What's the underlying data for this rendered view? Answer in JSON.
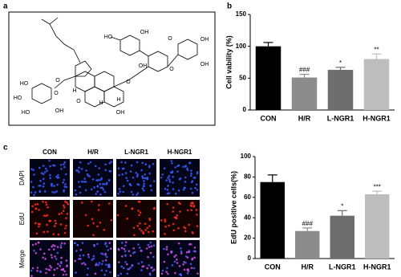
{
  "panels": {
    "a": {
      "label": "a",
      "atoms": [
        "HO",
        "OH",
        "O",
        "OH",
        "OH",
        "O",
        "O",
        "OH",
        "HO",
        "HO",
        "HO",
        "OH",
        "O",
        "O",
        "H",
        "H",
        "O",
        "H",
        "OH"
      ]
    },
    "b": {
      "label": "b"
    },
    "c": {
      "label": "c",
      "columns": [
        "CON",
        "H/R",
        "L-NGR1",
        "H-NGR1"
      ],
      "rows": [
        "DAPI",
        "EdU",
        "Merge"
      ]
    }
  },
  "chart_data": [
    {
      "type": "bar",
      "ylabel": "Cell vability (%)",
      "categories": [
        "CON",
        "H/R",
        "L-NGR1",
        "H-NGR1"
      ],
      "values": [
        100,
        51,
        63,
        80
      ],
      "errors": [
        6,
        5,
        4,
        8
      ],
      "annotations": [
        null,
        "###",
        "*",
        "**"
      ],
      "colors": [
        "#000000",
        "#8c8c8c",
        "#6e6e6e",
        "#bdbdbd"
      ],
      "ylim": [
        0,
        150
      ],
      "yticks": [
        0,
        50,
        100,
        150
      ]
    },
    {
      "type": "bar",
      "ylabel": "EdU positive cells(%)",
      "categories": [
        "CON",
        "H/R",
        "L-NGR1",
        "H-NGR1"
      ],
      "values": [
        75,
        27,
        42,
        63
      ],
      "errors": [
        7,
        3,
        5,
        3
      ],
      "annotations": [
        null,
        "###",
        "*",
        "***"
      ],
      "colors": [
        "#000000",
        "#8c8c8c",
        "#6e6e6e",
        "#bdbdbd"
      ],
      "ylim": [
        0,
        100
      ],
      "yticks": [
        0,
        20,
        40,
        60,
        80,
        100
      ]
    }
  ]
}
